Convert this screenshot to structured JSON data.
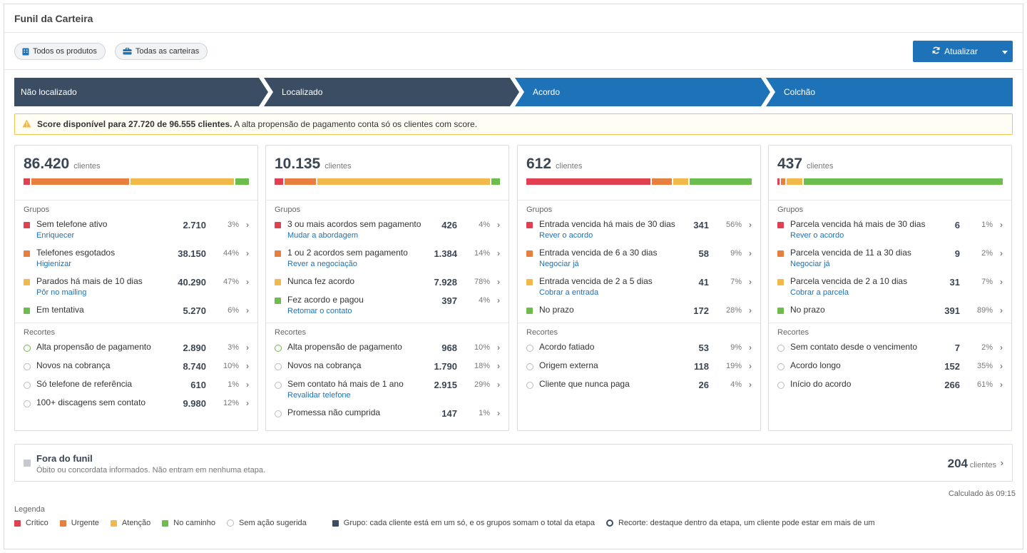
{
  "window": {
    "title": "Funil da Carteira"
  },
  "toolbar": {
    "filters": [
      {
        "label": "Todos os produtos",
        "icon": "building-icon"
      },
      {
        "label": "Todas as carteiras",
        "icon": "briefcase-icon"
      }
    ],
    "refresh_label": "Atualizar"
  },
  "stages": [
    "Não localizado",
    "Localizado",
    "Acordo",
    "Colchão"
  ],
  "alert": {
    "bold": "Score disponível para 27.720 de 96.555 clientes.",
    "text": " A alta propensão de pagamento conta só os clientes com score."
  },
  "colors": {
    "critico": "#e0404f",
    "urgente": "#e87f3e",
    "atencao": "#f0b94a",
    "no_caminho": "#6cbd4d",
    "sem_acao": "#bbbbbb",
    "stage_dark": "#3a4d63",
    "stage_blue": "#1d72b8"
  },
  "labels": {
    "clientes": "clientes",
    "grupos": "Grupos",
    "recortes": "Recortes"
  },
  "cards": [
    {
      "total": "86.420",
      "mix": [
        3,
        44,
        47,
        6
      ],
      "grupos": [
        {
          "name": "Sem telefone ativo",
          "action": "Enriquecer",
          "count": "2.710",
          "pct": "3%",
          "level": "critico"
        },
        {
          "name": "Telefones esgotados",
          "action": "Higienizar",
          "count": "38.150",
          "pct": "44%",
          "level": "urgente"
        },
        {
          "name": "Parados há mais de 10 dias",
          "action": "Pôr no mailing",
          "count": "40.290",
          "pct": "47%",
          "level": "atencao"
        },
        {
          "name": "Em tentativa",
          "action": "",
          "count": "5.270",
          "pct": "6%",
          "level": "no_caminho"
        }
      ],
      "recortes": [
        {
          "name": "Alta propensão de pagamento",
          "action": "",
          "count": "2.890",
          "pct": "3%",
          "level": "no_caminho"
        },
        {
          "name": "Novos na cobrança",
          "action": "",
          "count": "8.740",
          "pct": "10%",
          "level": "sem_acao"
        },
        {
          "name": "Só telefone de referência",
          "action": "",
          "count": "610",
          "pct": "1%",
          "level": "sem_acao"
        },
        {
          "name": "100+ discagens sem contato",
          "action": "",
          "count": "9.980",
          "pct": "12%",
          "level": "sem_acao"
        }
      ]
    },
    {
      "total": "10.135",
      "mix": [
        4,
        14,
        78,
        4
      ],
      "grupos": [
        {
          "name": "3 ou mais acordos sem pagamento",
          "action": "Mudar a abordagem",
          "count": "426",
          "pct": "4%",
          "level": "critico"
        },
        {
          "name": "1 ou 2 acordos sem pagamento",
          "action": "Rever a negociação",
          "count": "1.384",
          "pct": "14%",
          "level": "urgente"
        },
        {
          "name": "Nunca fez acordo",
          "action": "",
          "count": "7.928",
          "pct": "78%",
          "level": "atencao"
        },
        {
          "name": "Fez acordo e pagou",
          "action": "Retomar o contato",
          "count": "397",
          "pct": "4%",
          "level": "no_caminho"
        }
      ],
      "recortes": [
        {
          "name": "Alta propensão de pagamento",
          "action": "",
          "count": "968",
          "pct": "10%",
          "level": "no_caminho"
        },
        {
          "name": "Novos na cobrança",
          "action": "",
          "count": "1.790",
          "pct": "18%",
          "level": "sem_acao"
        },
        {
          "name": "Sem contato há mais de 1 ano",
          "action": "Revalidar telefone",
          "count": "2.915",
          "pct": "29%",
          "level": "sem_acao"
        },
        {
          "name": "Promessa não cumprida",
          "action": "",
          "count": "147",
          "pct": "1%",
          "level": "sem_acao"
        }
      ]
    },
    {
      "total": "612",
      "mix": [
        56,
        9,
        7,
        28
      ],
      "grupos": [
        {
          "name": "Entrada vencida há mais de 30 dias",
          "action": "Rever o acordo",
          "count": "341",
          "pct": "56%",
          "level": "critico"
        },
        {
          "name": "Entrada vencida de 6 a 30 dias",
          "action": "Negociar já",
          "count": "58",
          "pct": "9%",
          "level": "urgente"
        },
        {
          "name": "Entrada vencida de 2 a 5 dias",
          "action": "Cobrar a entrada",
          "count": "41",
          "pct": "7%",
          "level": "atencao"
        },
        {
          "name": "No prazo",
          "action": "",
          "count": "172",
          "pct": "28%",
          "level": "no_caminho"
        }
      ],
      "recortes": [
        {
          "name": "Acordo fatiado",
          "action": "",
          "count": "53",
          "pct": "9%",
          "level": "sem_acao"
        },
        {
          "name": "Origem externa",
          "action": "",
          "count": "118",
          "pct": "19%",
          "level": "sem_acao"
        },
        {
          "name": "Cliente que nunca paga",
          "action": "",
          "count": "26",
          "pct": "4%",
          "level": "sem_acao"
        }
      ]
    },
    {
      "total": "437",
      "mix": [
        1,
        2,
        7,
        89
      ],
      "grupos": [
        {
          "name": "Parcela vencida há mais de 30 dias",
          "action": "Rever o acordo",
          "count": "6",
          "pct": "1%",
          "level": "critico"
        },
        {
          "name": "Parcela vencida de 11 a 30 dias",
          "action": "Negociar já",
          "count": "9",
          "pct": "2%",
          "level": "urgente"
        },
        {
          "name": "Parcela vencida de 2 a 10 dias",
          "action": "Cobrar a parcela",
          "count": "31",
          "pct": "7%",
          "level": "atencao"
        },
        {
          "name": "No prazo",
          "action": "",
          "count": "391",
          "pct": "89%",
          "level": "no_caminho"
        }
      ],
      "recortes": [
        {
          "name": "Sem contato desde o vencimento",
          "action": "",
          "count": "7",
          "pct": "2%",
          "level": "sem_acao"
        },
        {
          "name": "Acordo longo",
          "action": "",
          "count": "152",
          "pct": "35%",
          "level": "sem_acao"
        },
        {
          "name": "Início do acordo",
          "action": "",
          "count": "266",
          "pct": "61%",
          "level": "sem_acao"
        }
      ]
    }
  ],
  "fora": {
    "title": "Fora do funil",
    "subtitle": "Óbito ou concordata informados. Não entram em nenhuma etapa.",
    "count": "204",
    "unit": "clientes"
  },
  "calculated": "Calculado às 09:15",
  "legend": {
    "title": "Legenda",
    "items": [
      {
        "label": "Crítico",
        "type": "swatch",
        "color": "#e0404f"
      },
      {
        "label": "Urgente",
        "type": "swatch",
        "color": "#e87f3e"
      },
      {
        "label": "Atenção",
        "type": "swatch",
        "color": "#f0b94a"
      },
      {
        "label": "No caminho",
        "type": "swatch",
        "color": "#6cbd4d"
      },
      {
        "label": "Sem ação sugerida",
        "type": "ring",
        "color": "#bbbbbb"
      },
      {
        "label": "Grupo: cada cliente está em um só, e os grupos somam o total da etapa",
        "type": "swatch",
        "color": "#3a4d63"
      },
      {
        "label": "Recorte: destaque dentro da etapa, um cliente pode estar em mais de um",
        "type": "ring",
        "color": "#3a4d63"
      }
    ]
  }
}
